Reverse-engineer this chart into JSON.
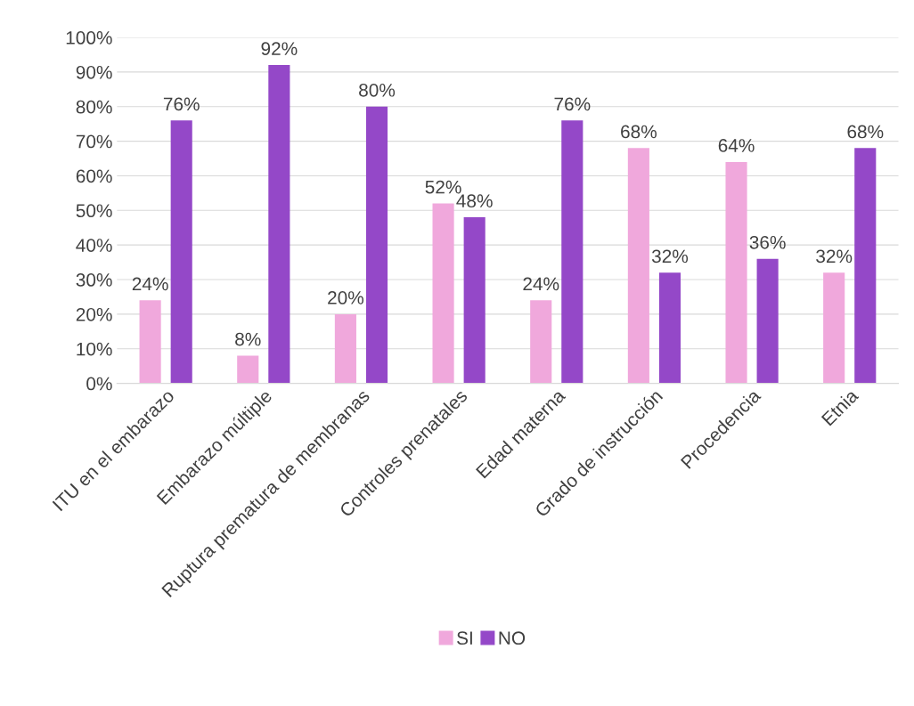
{
  "chart_data": {
    "type": "bar",
    "categories": [
      "ITU en el embarazo",
      "Embarazo múltiple",
      "Ruptura prematura de membranas",
      "Controles prenatales",
      "Edad materna",
      "Grado de instrucción",
      "Procedencia",
      "Etnia"
    ],
    "series": [
      {
        "name": "SI",
        "color": "#f0a8dc",
        "values": [
          24,
          8,
          20,
          52,
          24,
          68,
          64,
          32
        ],
        "value_labels": [
          "24%",
          "8%",
          "20%",
          "52%",
          "24%",
          "68%",
          "64%",
          "32%"
        ]
      },
      {
        "name": "NO",
        "color": "#9448c8",
        "values": [
          76,
          92,
          80,
          48,
          76,
          32,
          36,
          68
        ],
        "value_labels": [
          "76%",
          "92%",
          "80%",
          "48%",
          "76%",
          "32%",
          "36%",
          "68%"
        ]
      }
    ],
    "ylim": [
      0,
      100
    ],
    "yticks": [
      {
        "value": 0,
        "label": "0%"
      },
      {
        "value": 10,
        "label": "10%"
      },
      {
        "value": 20,
        "label": "20%"
      },
      {
        "value": 30,
        "label": "30%"
      },
      {
        "value": 40,
        "label": "40%"
      },
      {
        "value": 50,
        "label": "50%"
      },
      {
        "value": 60,
        "label": "60%"
      },
      {
        "value": 70,
        "label": "70%"
      },
      {
        "value": 80,
        "label": "80%"
      },
      {
        "value": 90,
        "label": "90%"
      },
      {
        "value": 100,
        "label": "100%"
      }
    ],
    "grid": "y",
    "legend": "bottom"
  }
}
